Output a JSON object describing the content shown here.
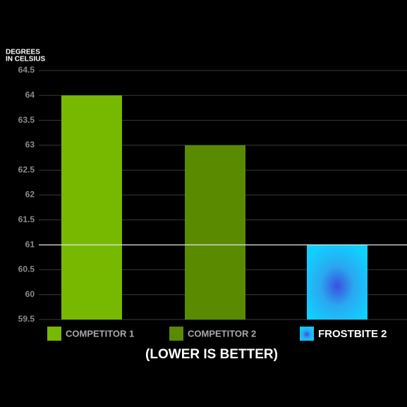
{
  "chart_data": {
    "type": "bar",
    "y_label": [
      "DEGREES",
      "IN CELSIUS"
    ],
    "annotation": "(LOWER IS BETTER)",
    "series": [
      {
        "name": "COMPETITOR 1",
        "color": "#76b900",
        "values": [
          64
        ]
      },
      {
        "name": "COMPETITOR 2",
        "color": "#5a8a00",
        "values": [
          63
        ]
      },
      {
        "name": "FROSTBITE 2",
        "color": "url(#frost)",
        "values": [
          61
        ]
      }
    ],
    "ylim": [
      59.5,
      64.5
    ],
    "yticks": [
      59.5,
      60,
      60.5,
      61,
      61.5,
      62,
      62.5,
      63,
      63.5,
      64,
      64.5
    ],
    "highlight_tick": 61,
    "grid": true
  }
}
